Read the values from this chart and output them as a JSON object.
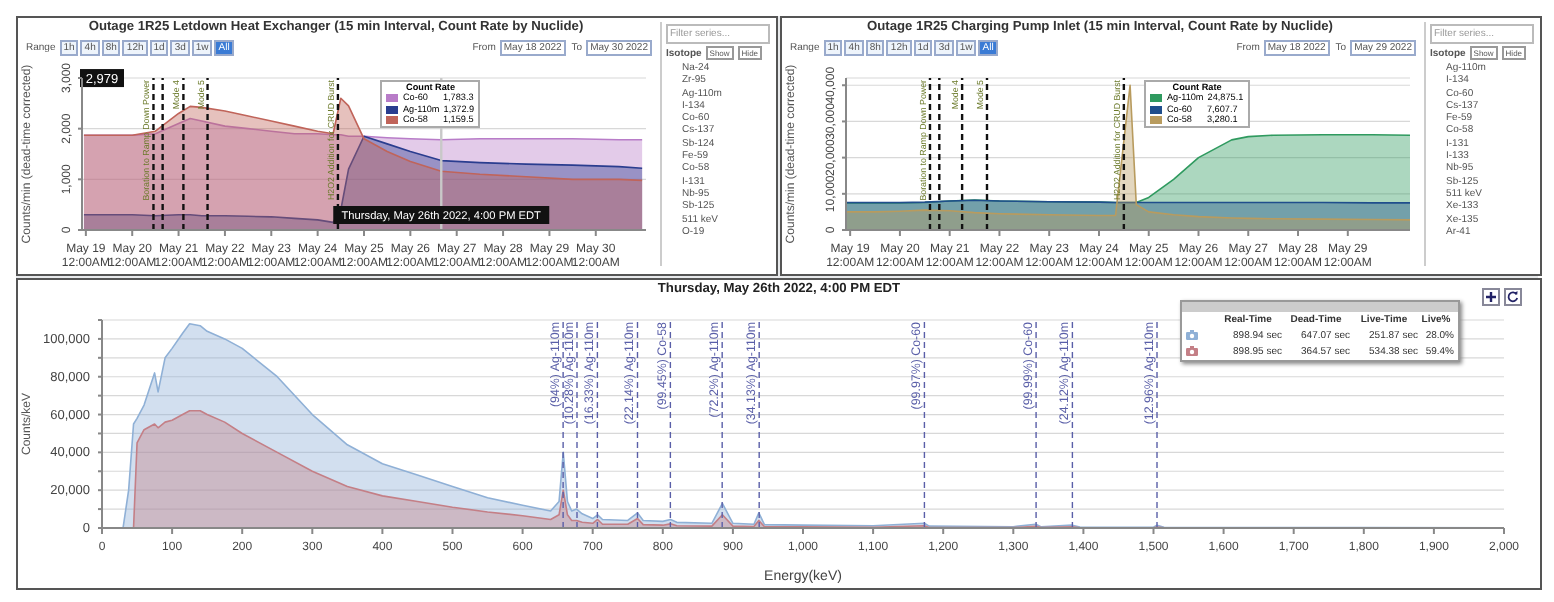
{
  "chart_data": [
    {
      "type": "area",
      "title": "Outage 1R25 Letdown Heat Exchanger (15 min Interval, Count Rate by Nuclide)",
      "ylabel": "Counts/min (dead-time corrected)",
      "legend_title": "Count Rate",
      "legend": "top",
      "grid": "y",
      "x": [
        "2022-05-18T23:00",
        "2022-05-19T12:00",
        "2022-05-20T00:00",
        "2022-05-20T12:00",
        "2022-05-21T00:00",
        "2022-05-21T06:00",
        "2022-05-21T12:00",
        "2022-05-22T00:00",
        "2022-05-22T12:00",
        "2022-05-23T00:00",
        "2022-05-23T12:00",
        "2022-05-24T00:00",
        "2022-05-24T08:00",
        "2022-05-24T12:00",
        "2022-05-24T16:00",
        "2022-05-25T00:00",
        "2022-05-25T12:00",
        "2022-05-26T00:00",
        "2022-05-26T16:00",
        "2022-05-27T12:00",
        "2022-05-28T12:00",
        "2022-05-29T12:00",
        "2022-05-30T12:00",
        "2022-05-31T00:00"
      ],
      "xlim": [
        "2022-05-18T22:00",
        "2022-05-31T02:00"
      ],
      "xticks": [
        {
          "value": "2022-05-19",
          "label": "May 19\n12:00AM"
        },
        {
          "value": "2022-05-20",
          "label": "May 20\n12:00AM"
        },
        {
          "value": "2022-05-21",
          "label": "May 21\n12:00AM"
        },
        {
          "value": "2022-05-22",
          "label": "May 22\n12:00AM"
        },
        {
          "value": "2022-05-23",
          "label": "May 23\n12:00AM"
        },
        {
          "value": "2022-05-24",
          "label": "May 24\n12:00AM"
        },
        {
          "value": "2022-05-25",
          "label": "May 25\n12:00AM"
        },
        {
          "value": "2022-05-26",
          "label": "May 26\n12:00AM"
        },
        {
          "value": "2022-05-27",
          "label": "May 27\n12:00AM"
        },
        {
          "value": "2022-05-28",
          "label": "May 28\n12:00AM"
        },
        {
          "value": "2022-05-29",
          "label": "May 29\n12:00AM"
        },
        {
          "value": "2022-05-30",
          "label": "May 30\n12:00AM"
        }
      ],
      "ylim": [
        0,
        3000
      ],
      "yticks": [
        {
          "value": 0,
          "label": "0"
        },
        {
          "value": 1000,
          "label": "1,000"
        },
        {
          "value": 2000,
          "label": "2,000"
        },
        {
          "value": 3000,
          "label": "3,000"
        }
      ],
      "series": [
        {
          "name": "Co-60",
          "color": "#b87cc8",
          "values": [
            1870,
            1870,
            1870,
            1900,
            2100,
            2200,
            2150,
            2050,
            2000,
            1950,
            1900,
            1900,
            1880,
            1880,
            1850,
            1850,
            1820,
            1800,
            1780,
            1800,
            1800,
            1800,
            1780,
            1780
          ]
        },
        {
          "name": "Ag-110m",
          "color": "#2a3d8f",
          "values": [
            300,
            300,
            300,
            280,
            300,
            300,
            280,
            280,
            270,
            260,
            230,
            200,
            150,
            400,
            1200,
            1850,
            1700,
            1550,
            1370,
            1330,
            1300,
            1280,
            1250,
            1220
          ]
        },
        {
          "name": "Co-58",
          "color": "#c0645a",
          "values": [
            1870,
            1870,
            1870,
            1950,
            2300,
            2440,
            2420,
            2350,
            2250,
            2150,
            2050,
            1950,
            1900,
            2600,
            2450,
            1800,
            1550,
            1350,
            1160,
            1100,
            1050,
            1000,
            1000,
            980
          ]
        }
      ],
      "ref_lines": [
        {
          "axis": "x",
          "value": "2022-05-20T11:00",
          "label": "Boration to Ramp Down Power",
          "color": "#111111",
          "line_style": "dashed"
        },
        {
          "axis": "x",
          "value": "2022-05-20T15:45",
          "label": null,
          "color": "#111111",
          "line_style": "dashed"
        },
        {
          "axis": "x",
          "value": "2022-05-21T02:30",
          "label": "Mode 4",
          "color": "#111111",
          "line_style": "dashed"
        },
        {
          "axis": "x",
          "value": "2022-05-21T15:00",
          "label": "Mode 5",
          "color": "#111111",
          "line_style": "dashed"
        },
        {
          "axis": "x",
          "value": "2022-05-24T10:30",
          "label": "H2O2 Addition for CRUD Burst",
          "color": "#111111",
          "line_style": "dashed"
        },
        {
          "axis": "x",
          "value": "2022-05-26T16:00",
          "label": "Thursday, May 26th 2022, 4:00 PM EDT",
          "color": "#c8c8c8",
          "line_style": "solid"
        }
      ],
      "annotations": [
        "Range",
        "1h",
        "4h",
        "8h",
        "12h",
        "1d",
        "3d",
        "1w",
        "All",
        "From",
        "May 18 2022",
        "To",
        "May 30 2022",
        "1,783.3",
        "1,372.9",
        "1,159.5",
        "Filter series...",
        "Isotope",
        "Show",
        "Hide",
        "Na-24",
        "Zr-95",
        "Ag-110m",
        "I-134",
        "Co-60",
        "Cs-137",
        "Sb-124",
        "Fe-59",
        "Co-58",
        "I-131",
        "Nb-95",
        "Sb-125",
        "511 keV",
        "O-19",
        {
          "text": "2,979",
          "y": 2979
        }
      ]
    },
    {
      "type": "area",
      "title": "Outage 1R25 Charging Pump Inlet (15 min Interval, Count Rate by Nuclide)",
      "ylabel": "Counts/min (dead-time corrected)",
      "legend_title": "Count Rate",
      "legend": "top",
      "grid": "y",
      "x": [
        "2022-05-18T22:00",
        "2022-05-19T12:00",
        "2022-05-20T00:00",
        "2022-05-20T12:00",
        "2022-05-21T00:00",
        "2022-05-21T12:00",
        "2022-05-22T00:00",
        "2022-05-23T00:00",
        "2022-05-24T00:00",
        "2022-05-24T08:00",
        "2022-05-24T15:00",
        "2022-05-24T18:00",
        "2022-05-25T00:00",
        "2022-05-25T12:00",
        "2022-05-26T00:00",
        "2022-05-26T16:00",
        "2022-05-27T00:00",
        "2022-05-27T12:00",
        "2022-05-28T12:00",
        "2022-05-29T12:00",
        "2022-05-30T06:00"
      ],
      "xlim": [
        "2022-05-18T22:00",
        "2022-05-30T06:00"
      ],
      "xticks": [
        {
          "value": "2022-05-19",
          "label": "May 19\n12:00AM"
        },
        {
          "value": "2022-05-20",
          "label": "May 20\n12:00AM"
        },
        {
          "value": "2022-05-21",
          "label": "May 21\n12:00AM"
        },
        {
          "value": "2022-05-22",
          "label": "May 22\n12:00AM"
        },
        {
          "value": "2022-05-23",
          "label": "May 23\n12:00AM"
        },
        {
          "value": "2022-05-24",
          "label": "May 24\n12:00AM"
        },
        {
          "value": "2022-05-25",
          "label": "May 25\n12:00AM"
        },
        {
          "value": "2022-05-26",
          "label": "May 26\n12:00AM"
        },
        {
          "value": "2022-05-27",
          "label": "May 27\n12:00AM"
        },
        {
          "value": "2022-05-28",
          "label": "May 28\n12:00AM"
        },
        {
          "value": "2022-05-29",
          "label": "May 29\n12:00AM"
        }
      ],
      "ylim": [
        0,
        42000
      ],
      "yticks": [
        {
          "value": 0,
          "label": "0"
        },
        {
          "value": 10000,
          "label": "10,000"
        },
        {
          "value": 20000,
          "label": "20,000"
        },
        {
          "value": 30000,
          "label": "30,000"
        },
        {
          "value": 40000,
          "label": "40,000"
        }
      ],
      "series": [
        {
          "name": "Ag-110m",
          "color": "#2f9a5f",
          "values": [
            7500,
            7500,
            7500,
            7600,
            8000,
            8300,
            8000,
            7800,
            7700,
            7600,
            7600,
            7600,
            9000,
            14000,
            20000,
            24900,
            25800,
            26200,
            26300,
            26300,
            26200
          ]
        },
        {
          "name": "Co-60",
          "color": "#1f4e8c",
          "values": [
            7600,
            7600,
            7600,
            7700,
            8000,
            8200,
            8000,
            7800,
            7700,
            7600,
            7600,
            7600,
            7600,
            7600,
            7600,
            7600,
            7600,
            7600,
            7600,
            7500,
            7500
          ]
        },
        {
          "name": "Co-58",
          "color": "#b89b5e",
          "values": [
            5000,
            5000,
            5200,
            5500,
            5300,
            4800,
            4500,
            4200,
            4000,
            4000,
            40000,
            7000,
            5000,
            4200,
            3700,
            3300,
            3200,
            3100,
            3000,
            2900,
            2800
          ]
        }
      ],
      "ref_lines": [
        {
          "axis": "x",
          "value": "2022-05-20T14:30",
          "label": "Boration to Ramp Down Power",
          "color": "#111111",
          "line_style": "dashed"
        },
        {
          "axis": "x",
          "value": "2022-05-20T19:00",
          "label": null,
          "color": "#111111",
          "line_style": "dashed"
        },
        {
          "axis": "x",
          "value": "2022-05-21T06:00",
          "label": "Mode 4",
          "color": "#111111",
          "line_style": "dashed"
        },
        {
          "axis": "x",
          "value": "2022-05-21T18:00",
          "label": "Mode 5",
          "color": "#111111",
          "line_style": "dashed"
        },
        {
          "axis": "x",
          "value": "2022-05-24T12:00",
          "label": "H2O2 Addition for CRUD Burst",
          "color": "#111111",
          "line_style": "dashed"
        }
      ],
      "annotations": [
        "Range",
        "1h",
        "4h",
        "8h",
        "12h",
        "1d",
        "3d",
        "1w",
        "All",
        "From",
        "May 18 2022",
        "To",
        "May 29 2022",
        "24,875.1",
        "7,607.7",
        "3,280.1",
        "Filter series...",
        "Isotope",
        "Show",
        "Hide",
        "Ag-110m",
        "I-134",
        "Co-60",
        "Cs-137",
        "Fe-59",
        "Co-58",
        "I-131",
        "I-133",
        "Nb-95",
        "Sb-125",
        "511 keV",
        "Xe-133",
        "Xe-135",
        "Ar-41"
      ]
    },
    {
      "type": "area",
      "title": "Thursday, May 26th 2022, 4:00 PM EDT",
      "xlabel": "Energy(keV)",
      "ylabel": "Counts/keV",
      "grid": "y",
      "x": [
        0,
        30,
        38,
        45,
        50,
        60,
        75,
        80,
        90,
        100,
        115,
        125,
        140,
        150,
        175,
        200,
        250,
        300,
        350,
        400,
        450,
        500,
        550,
        600,
        640,
        652,
        658,
        664,
        670,
        677,
        685,
        700,
        707,
        714,
        750,
        764,
        772,
        800,
        811,
        820,
        870,
        885,
        900,
        930,
        937,
        945,
        1000,
        1100,
        1173,
        1180,
        1300,
        1332,
        1340,
        1384,
        1395,
        1500,
        1505,
        1515,
        1600,
        1800,
        2000
      ],
      "xlim": [
        0,
        2000
      ],
      "xticks": [
        0,
        100,
        200,
        300,
        400,
        500,
        600,
        700,
        800,
        900,
        {
          "value": 1000,
          "label": "1,000"
        },
        {
          "value": 1100,
          "label": "1,100"
        },
        {
          "value": 1200,
          "label": "1,200"
        },
        {
          "value": 1300,
          "label": "1,300"
        },
        {
          "value": 1400,
          "label": "1,400"
        },
        {
          "value": 1500,
          "label": "1,500"
        },
        {
          "value": 1600,
          "label": "1,600"
        },
        {
          "value": 1700,
          "label": "1,700"
        },
        {
          "value": 1800,
          "label": "1,800"
        },
        {
          "value": 1900,
          "label": "1,900"
        },
        {
          "value": 2000,
          "label": "2,000"
        }
      ],
      "ylim": [
        0,
        110000
      ],
      "yticks": [
        0,
        {
          "value": 10000,
          "label": null
        },
        {
          "value": 20000,
          "label": "20,000"
        },
        {
          "value": 30000,
          "label": null
        },
        {
          "value": 40000,
          "label": "40,000"
        },
        {
          "value": 50000,
          "label": null
        },
        {
          "value": 60000,
          "label": "60,000"
        },
        {
          "value": 70000,
          "label": null
        },
        {
          "value": 80000,
          "label": "80,000"
        },
        {
          "value": 90000,
          "label": null
        },
        {
          "value": 100000,
          "label": "100,000"
        },
        {
          "value": 110000,
          "label": null
        }
      ],
      "series": [
        {
          "color": "#8fb0d6",
          "values": [
            0,
            0,
            20000,
            55000,
            58000,
            65000,
            82000,
            72000,
            90000,
            95000,
            103000,
            108000,
            107000,
            104000,
            100000,
            95000,
            80000,
            60000,
            44000,
            34000,
            28000,
            22000,
            16000,
            12000,
            9000,
            14000,
            40000,
            14000,
            9000,
            10000,
            7500,
            5000,
            7000,
            4500,
            4000,
            8000,
            4000,
            3500,
            4500,
            3000,
            2500,
            13000,
            2500,
            2000,
            8000,
            1800,
            1500,
            1200,
            2500,
            1000,
            700,
            2000,
            600,
            1500,
            500,
            400,
            1500,
            400,
            300,
            200,
            100
          ]
        },
        {
          "color": "#c47f86",
          "values": [
            null,
            null,
            null,
            0,
            45000,
            52000,
            55000,
            53000,
            56000,
            57000,
            60000,
            62000,
            62000,
            60000,
            56000,
            50000,
            40000,
            30000,
            22000,
            17000,
            14000,
            11000,
            8500,
            6500,
            4500,
            7000,
            20000,
            7000,
            4000,
            4000,
            3000,
            2500,
            4500,
            2000,
            2000,
            5000,
            1800,
            1500,
            2200,
            1200,
            1000,
            7000,
            1000,
            800,
            4000,
            700,
            600,
            400,
            1200,
            300,
            200,
            900,
            200,
            600,
            150,
            100,
            500,
            100,
            80,
            50,
            20
          ]
        }
      ],
      "ref_lines": [
        {
          "axis": "x",
          "value": 657.8,
          "label": "(94%) Ag-110m",
          "color": "#5a5fa8",
          "line_style": "dashed"
        },
        {
          "axis": "x",
          "value": 677.6,
          "label": "(10.28%) Ag-110m",
          "color": "#5a5fa8",
          "line_style": "dashed"
        },
        {
          "axis": "x",
          "value": 706.7,
          "label": "(16.33%) Ag-110m",
          "color": "#5a5fa8",
          "line_style": "dashed"
        },
        {
          "axis": "x",
          "value": 763.9,
          "label": "(22.14%) Ag-110m",
          "color": "#5a5fa8",
          "line_style": "dashed"
        },
        {
          "axis": "x",
          "value": 810.8,
          "label": "(99.45%) Co-58",
          "color": "#5a5fa8",
          "line_style": "dashed"
        },
        {
          "axis": "x",
          "value": 884.7,
          "label": "(72.2%) Ag-110m",
          "color": "#5a5fa8",
          "line_style": "dashed"
        },
        {
          "axis": "x",
          "value": 937.5,
          "label": "(34.13%) Ag-110m",
          "color": "#5a5fa8",
          "line_style": "dashed"
        },
        {
          "axis": "x",
          "value": 1173.2,
          "label": "(99.97%) Co-60",
          "color": "#5a5fa8",
          "line_style": "dashed"
        },
        {
          "axis": "x",
          "value": 1332.5,
          "label": "(99.99%) Co-60",
          "color": "#5a5fa8",
          "line_style": "dashed"
        },
        {
          "axis": "x",
          "value": 1384.3,
          "label": "(24.12%) Ag-110m",
          "color": "#5a5fa8",
          "line_style": "dashed"
        },
        {
          "axis": "x",
          "value": 1505,
          "label": "(12.96%) Ag-110m",
          "color": "#5a5fa8",
          "line_style": "dashed"
        }
      ],
      "annotations": [
        "Real-Time",
        "Dead-Time",
        "Live-Time",
        "Live%",
        "898.94 sec",
        "647.07 sec",
        "251.87 sec",
        "28.0%",
        "898.95 sec",
        "364.57 sec",
        "534.38 sec",
        "59.4%"
      ]
    }
  ]
}
